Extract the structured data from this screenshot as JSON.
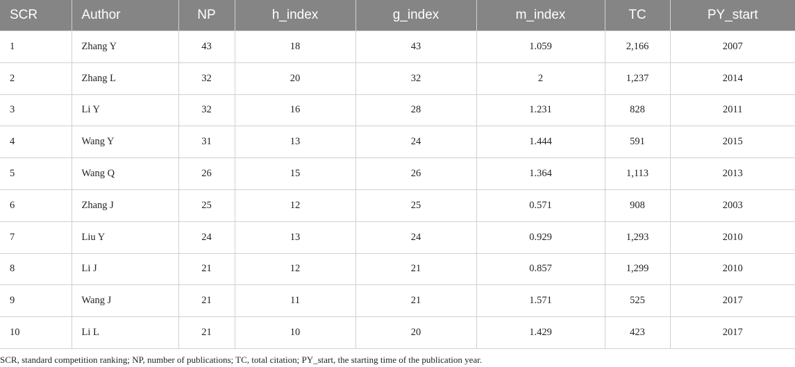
{
  "table": {
    "header": [
      "SCR",
      "Author",
      "NP",
      "h_index",
      "g_index",
      "m_index",
      "TC",
      "PY_start"
    ],
    "rows": [
      [
        "1",
        "Zhang Y",
        "43",
        "18",
        "43",
        "1.059",
        "2,166",
        "2007"
      ],
      [
        "2",
        "Zhang L",
        "32",
        "20",
        "32",
        "2",
        "1,237",
        "2014"
      ],
      [
        "3",
        "Li Y",
        "32",
        "16",
        "28",
        "1.231",
        "828",
        "2011"
      ],
      [
        "4",
        "Wang Y",
        "31",
        "13",
        "24",
        "1.444",
        "591",
        "2015"
      ],
      [
        "5",
        "Wang Q",
        "26",
        "15",
        "26",
        "1.364",
        "1,113",
        "2013"
      ],
      [
        "6",
        "Zhang J",
        "25",
        "12",
        "25",
        "0.571",
        "908",
        "2003"
      ],
      [
        "7",
        "Liu Y",
        "24",
        "13",
        "24",
        "0.929",
        "1,293",
        "2010"
      ],
      [
        "8",
        "Li J",
        "21",
        "12",
        "21",
        "0.857",
        "1,299",
        "2010"
      ],
      [
        "9",
        "Wang J",
        "21",
        "11",
        "21",
        "1.571",
        "525",
        "2017"
      ],
      [
        "10",
        "Li L",
        "21",
        "10",
        "20",
        "1.429",
        "423",
        "2017"
      ]
    ]
  },
  "footnote": "SCR, standard competition ranking; NP, number of publications; TC, total citation; PY_start, the starting time of the publication year."
}
